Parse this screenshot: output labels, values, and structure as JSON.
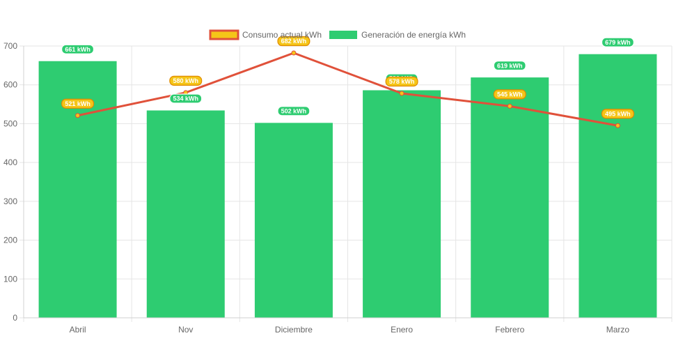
{
  "chart_data": {
    "type": "bar",
    "categories": [
      "Abril",
      "Nov",
      "Diciembre",
      "Enero",
      "Febrero",
      "Marzo"
    ],
    "ylim": [
      0,
      700
    ],
    "yticks": [
      0,
      100,
      200,
      300,
      400,
      500,
      600,
      700
    ],
    "grid": true,
    "legend_position": "top-center",
    "series": [
      {
        "name": "Consumo actual kWh",
        "type": "line",
        "values": [
          521,
          580,
          682,
          578,
          545,
          495
        ],
        "labels": [
          "521 kWh",
          "580 kWh",
          "682 kWh",
          "578 kWh",
          "545 kWh",
          "495 kWh"
        ],
        "line_color": "#e0513a",
        "fill_color": "#f5c518"
      },
      {
        "name": "Generación de energía kWh",
        "type": "bar",
        "values": [
          661,
          534,
          502,
          586,
          619,
          679
        ],
        "labels": [
          "661 kWh",
          "534 kWh",
          "502 kWh",
          "586 kWh",
          "619 kWh",
          "679 kWh"
        ],
        "color": "#2ecc71"
      }
    ]
  }
}
